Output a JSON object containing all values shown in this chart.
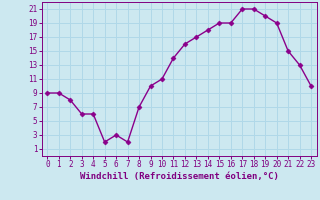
{
  "x": [
    0,
    1,
    2,
    3,
    4,
    5,
    6,
    7,
    8,
    9,
    10,
    11,
    12,
    13,
    14,
    15,
    16,
    17,
    18,
    19,
    20,
    21,
    22,
    23
  ],
  "y": [
    9,
    9,
    8,
    6,
    6,
    2,
    3,
    2,
    7,
    10,
    11,
    14,
    16,
    17,
    18,
    19,
    19,
    21,
    21,
    20,
    19,
    15,
    13,
    10
  ],
  "line_color": "#8b008b",
  "marker": "D",
  "marker_size": 2.5,
  "linewidth": 1.0,
  "xlabel": "Windchill (Refroidissement éolien,°C)",
  "xlabel_fontsize": 6.5,
  "yticks": [
    1,
    3,
    5,
    7,
    9,
    11,
    13,
    15,
    17,
    19,
    21
  ],
  "xticks": [
    0,
    1,
    2,
    3,
    4,
    5,
    6,
    7,
    8,
    9,
    10,
    11,
    12,
    13,
    14,
    15,
    16,
    17,
    18,
    19,
    20,
    21,
    22,
    23
  ],
  "ylim": [
    0,
    22
  ],
  "xlim": [
    -0.5,
    23.5
  ],
  "background_color": "#cce8f0",
  "grid_color": "#b0d8e8",
  "tick_color": "#800080",
  "spine_color": "#800080",
  "tick_fontsize": 5.5
}
